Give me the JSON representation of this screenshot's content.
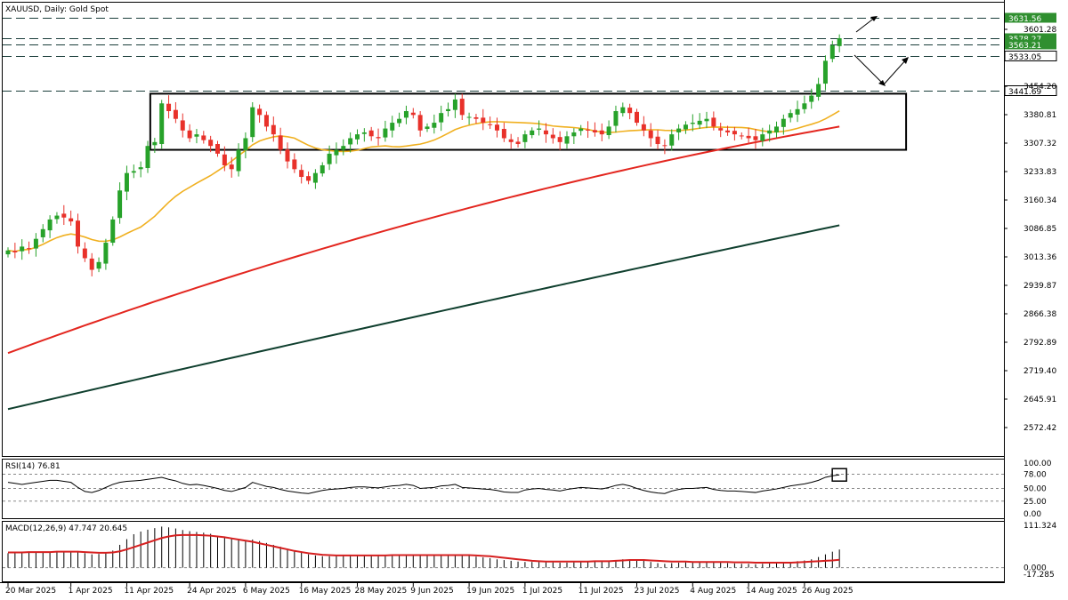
{
  "header": {
    "title": "XAUUSD, Daily:  Gold Spot"
  },
  "colors": {
    "bull": "#27a22a",
    "bear": "#e8312a",
    "ema20": "#f0b020",
    "ema100": "#e3261f",
    "ema200": "#0f3f2e",
    "macd_hist": "#000000",
    "macd_signal": "#d61f1f",
    "badge": "#2f8f2f"
  },
  "chart_data": [
    {
      "type": "candlestick",
      "title": "XAUUSD, Daily:  Gold Spot",
      "ylim": [
        2520,
        3700
      ],
      "price_ticks": [
        "3601.28",
        "3454.20",
        "3380.81",
        "3307.32",
        "3233.83",
        "3160.34",
        "3086.85",
        "3013.36",
        "2939.87",
        "2866.38",
        "2792.89",
        "2719.40",
        "2645.91",
        "2572.42"
      ],
      "price_tick_values": [
        3601.28,
        3454.2,
        3380.81,
        3307.32,
        3233.83,
        3160.34,
        3086.85,
        3013.36,
        2939.87,
        2866.38,
        2792.89,
        2719.4,
        2645.91,
        2572.42
      ],
      "x_ticks": [
        "20 Mar 2025",
        "1 Apr 2025",
        "11 Apr 2025",
        "24 Apr 2025",
        "6 May 2025",
        "16 May 2025",
        "28 May 2025",
        "9 Jun 2025",
        "19 Jun 2025",
        "1 Jul 2025",
        "11 Jul 2025",
        "23 Jul 2025",
        "4 Aug 2025",
        "14 Aug 2025",
        "26 Aug 2025"
      ],
      "x_tick_index": [
        0,
        9,
        17,
        26,
        34,
        42,
        50,
        58,
        66,
        74,
        82,
        90,
        98,
        106,
        114
      ],
      "levels": [
        {
          "label": "3631.56",
          "value": 3631.56,
          "badge": true
        },
        {
          "label": "3578.27",
          "value": 3578.27,
          "badge": true
        },
        {
          "label": "3563.21",
          "value": 3563.21,
          "badge": true
        },
        {
          "label": "3533.05",
          "value": 3533.05,
          "badge": false
        },
        {
          "label": "3441.69",
          "value": 3441.69,
          "badge": false
        }
      ],
      "range_box": {
        "start_index": 21,
        "end_index": 126,
        "top": 3435,
        "bottom": 3290
      },
      "closes": [
        3030,
        3025,
        3040,
        3035,
        3060,
        3085,
        3110,
        3120,
        3115,
        3105,
        3040,
        3010,
        2980,
        3000,
        3050,
        3110,
        3185,
        3230,
        3235,
        3245,
        3300,
        3310,
        3410,
        3390,
        3370,
        3340,
        3320,
        3330,
        3315,
        3300,
        3280,
        3250,
        3240,
        3290,
        3320,
        3400,
        3380,
        3350,
        3330,
        3290,
        3260,
        3240,
        3220,
        3210,
        3230,
        3250,
        3280,
        3290,
        3300,
        3320,
        3330,
        3335,
        3325,
        3320,
        3345,
        3360,
        3370,
        3390,
        3380,
        3340,
        3350,
        3360,
        3385,
        3395,
        3420,
        3380,
        3375,
        3370,
        3360,
        3355,
        3340,
        3320,
        3310,
        3305,
        3330,
        3340,
        3345,
        3330,
        3320,
        3310,
        3325,
        3335,
        3345,
        3340,
        3335,
        3330,
        3350,
        3390,
        3400,
        3385,
        3360,
        3340,
        3320,
        3305,
        3300,
        3330,
        3345,
        3355,
        3360,
        3365,
        3370,
        3350,
        3340,
        3335,
        3330,
        3325,
        3320,
        3315,
        3330,
        3340,
        3350,
        3370,
        3385,
        3395,
        3410,
        3430,
        3460,
        3520,
        3560,
        3578.27
      ],
      "sma20_last": 3400,
      "sma100_last": 3350,
      "sma200_last": 3095
    },
    {
      "type": "line",
      "title": "RSI(14) 76.81",
      "ylim": [
        0,
        100
      ],
      "ticks": [
        "100.00",
        "78.00",
        "50.00",
        "25.00",
        "0.00"
      ],
      "tick_values": [
        100,
        78,
        50,
        25,
        0
      ],
      "guides": [
        78,
        50,
        25
      ],
      "values": [
        62,
        60,
        58,
        60,
        62,
        64,
        66,
        66,
        64,
        62,
        52,
        44,
        42,
        46,
        52,
        58,
        62,
        64,
        65,
        66,
        68,
        70,
        72,
        68,
        65,
        60,
        57,
        58,
        56,
        53,
        50,
        46,
        44,
        48,
        52,
        62,
        58,
        54,
        52,
        48,
        45,
        43,
        41,
        40,
        43,
        46,
        48,
        49,
        50,
        52,
        53,
        53,
        52,
        51,
        53,
        55,
        56,
        58,
        56,
        50,
        51,
        52,
        55,
        56,
        58,
        52,
        51,
        50,
        49,
        48,
        46,
        43,
        42,
        42,
        47,
        49,
        50,
        48,
        47,
        45,
        48,
        50,
        52,
        51,
        50,
        49,
        52,
        56,
        58,
        55,
        50,
        46,
        43,
        41,
        40,
        45,
        48,
        50,
        50,
        51,
        52,
        48,
        46,
        45,
        45,
        44,
        43,
        42,
        45,
        47,
        49,
        52,
        55,
        57,
        59,
        62,
        66,
        72,
        75,
        76.81
      ],
      "marker": "box at last value"
    },
    {
      "type": "bar+line",
      "title": "MACD(12,26,9) 47.747 20.645",
      "ylim": [
        -17.285,
        111.324
      ],
      "ticks": [
        "111.324",
        "0.000",
        "-17.285"
      ],
      "tick_values": [
        111.324,
        0,
        -17.285
      ],
      "histogram": [
        38,
        39,
        40,
        40,
        41,
        41,
        42,
        42,
        43,
        42,
        40,
        38,
        35,
        36,
        38,
        45,
        60,
        75,
        88,
        95,
        100,
        104,
        108,
        106,
        103,
        99,
        96,
        94,
        92,
        89,
        84,
        80,
        76,
        74,
        72,
        74,
        70,
        65,
        60,
        55,
        50,
        45,
        40,
        35,
        32,
        30,
        30,
        31,
        32,
        33,
        33,
        34,
        34,
        34,
        34,
        35,
        35,
        35,
        35,
        34,
        33,
        32,
        32,
        32,
        33,
        32,
        31,
        29,
        27,
        25,
        22,
        20,
        18,
        16,
        15,
        15,
        15,
        14,
        14,
        13,
        13,
        14,
        15,
        16,
        17,
        18,
        18,
        20,
        22,
        22,
        20,
        18,
        15,
        12,
        10,
        12,
        13,
        14,
        14,
        15,
        15,
        14,
        13,
        12,
        11,
        10,
        10,
        9,
        10,
        11,
        12,
        13,
        15,
        17,
        19,
        22,
        28,
        35,
        42,
        47.747
      ],
      "signal": [
        40,
        40,
        40,
        41,
        41,
        41,
        41,
        42,
        42,
        42,
        42,
        41,
        40,
        39,
        39,
        40,
        43,
        48,
        54,
        60,
        66,
        72,
        78,
        82,
        85,
        86,
        86,
        86,
        85,
        84,
        82,
        80,
        77,
        74,
        71,
        68,
        64,
        60,
        56,
        52,
        48,
        44,
        41,
        38,
        36,
        34,
        33,
        32,
        32,
        32,
        32,
        32,
        32,
        32,
        32,
        33,
        33,
        33,
        33,
        33,
        33,
        33,
        33,
        33,
        33,
        33,
        33,
        32,
        31,
        30,
        28,
        26,
        24,
        22,
        20,
        18,
        17,
        16,
        16,
        16,
        16,
        16,
        16,
        16,
        17,
        17,
        17,
        18,
        19,
        20,
        20,
        20,
        19,
        18,
        17,
        16,
        16,
        16,
        15,
        15,
        15,
        15,
        15,
        15,
        14,
        14,
        14,
        13,
        13,
        13,
        13,
        13,
        13,
        14,
        15,
        16,
        17,
        18,
        19,
        20.645
      ]
    }
  ]
}
